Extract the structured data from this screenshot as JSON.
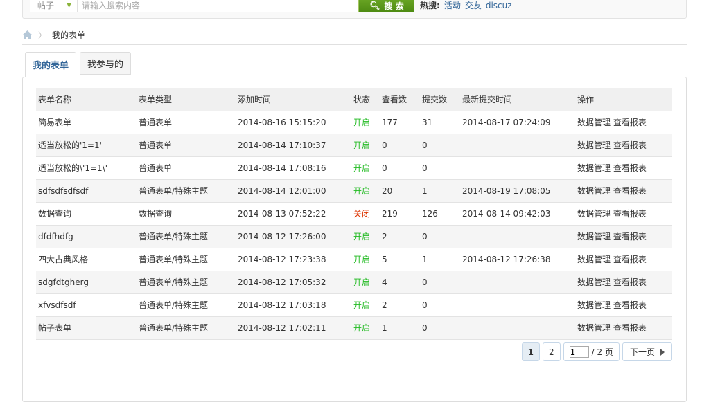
{
  "search": {
    "type": "帖子",
    "placeholder": "请输入搜索内容",
    "button": "搜 索",
    "hot_label": "热搜:",
    "hot": [
      "活动",
      "交友",
      "discuz"
    ]
  },
  "breadcrumb": {
    "current": "我的表单"
  },
  "tabs": [
    "我的表单",
    "我参与的"
  ],
  "table": {
    "headers": [
      "表单名称",
      "表单类型",
      "添加时间",
      "状态",
      "查看数",
      "提交数",
      "最新提交时间",
      "操作"
    ],
    "rows": [
      [
        "简易表单",
        "普通表单",
        "2014-08-16 15:15:20",
        "开启",
        "177",
        "31",
        "2014-08-17 07:24:09"
      ],
      [
        "适当放松的'1=1'",
        "普通表单",
        "2014-08-14 17:10:37",
        "开启",
        "0",
        "0",
        ""
      ],
      [
        "适当放松的\\'1=1\\'",
        "普通表单",
        "2014-08-14 17:08:16",
        "开启",
        "0",
        "0",
        ""
      ],
      [
        "sdfsdfsdfsdf",
        "普通表单/特殊主题",
        "2014-08-14 12:01:00",
        "开启",
        "20",
        "1",
        "2014-08-19 17:08:05"
      ],
      [
        "数据查询",
        "数据查询",
        "2014-08-13 07:52:22",
        "关闭",
        "219",
        "126",
        "2014-08-14 09:42:03"
      ],
      [
        "dfdfhdfg",
        "普通表单/特殊主题",
        "2014-08-12 17:26:00",
        "开启",
        "2",
        "0",
        ""
      ],
      [
        "四大古典风格",
        "普通表单/特殊主题",
        "2014-08-12 17:23:38",
        "开启",
        "5",
        "1",
        "2014-08-12 17:26:38"
      ],
      [
        "sdgfdtgherg",
        "普通表单/特殊主题",
        "2014-08-12 17:05:32",
        "开启",
        "4",
        "0",
        ""
      ],
      [
        "xfvsdfsdf",
        "普通表单/特殊主题",
        "2014-08-12 17:03:18",
        "开启",
        "2",
        "0",
        ""
      ],
      [
        "帖子表单",
        "普通表单/特殊主题",
        "2014-08-12 17:02:11",
        "开启",
        "1",
        "0",
        ""
      ]
    ],
    "ops": [
      "数据管理",
      "查看报表"
    ]
  },
  "pager": {
    "pages": [
      "1",
      "2"
    ],
    "current": "1",
    "input": "1",
    "total": "/ 2 页",
    "next": "下一页"
  },
  "colors": {
    "open": "#22bb22",
    "closed": "#dd3300",
    "search_button": "#5a9a1a",
    "link": "#336699"
  }
}
